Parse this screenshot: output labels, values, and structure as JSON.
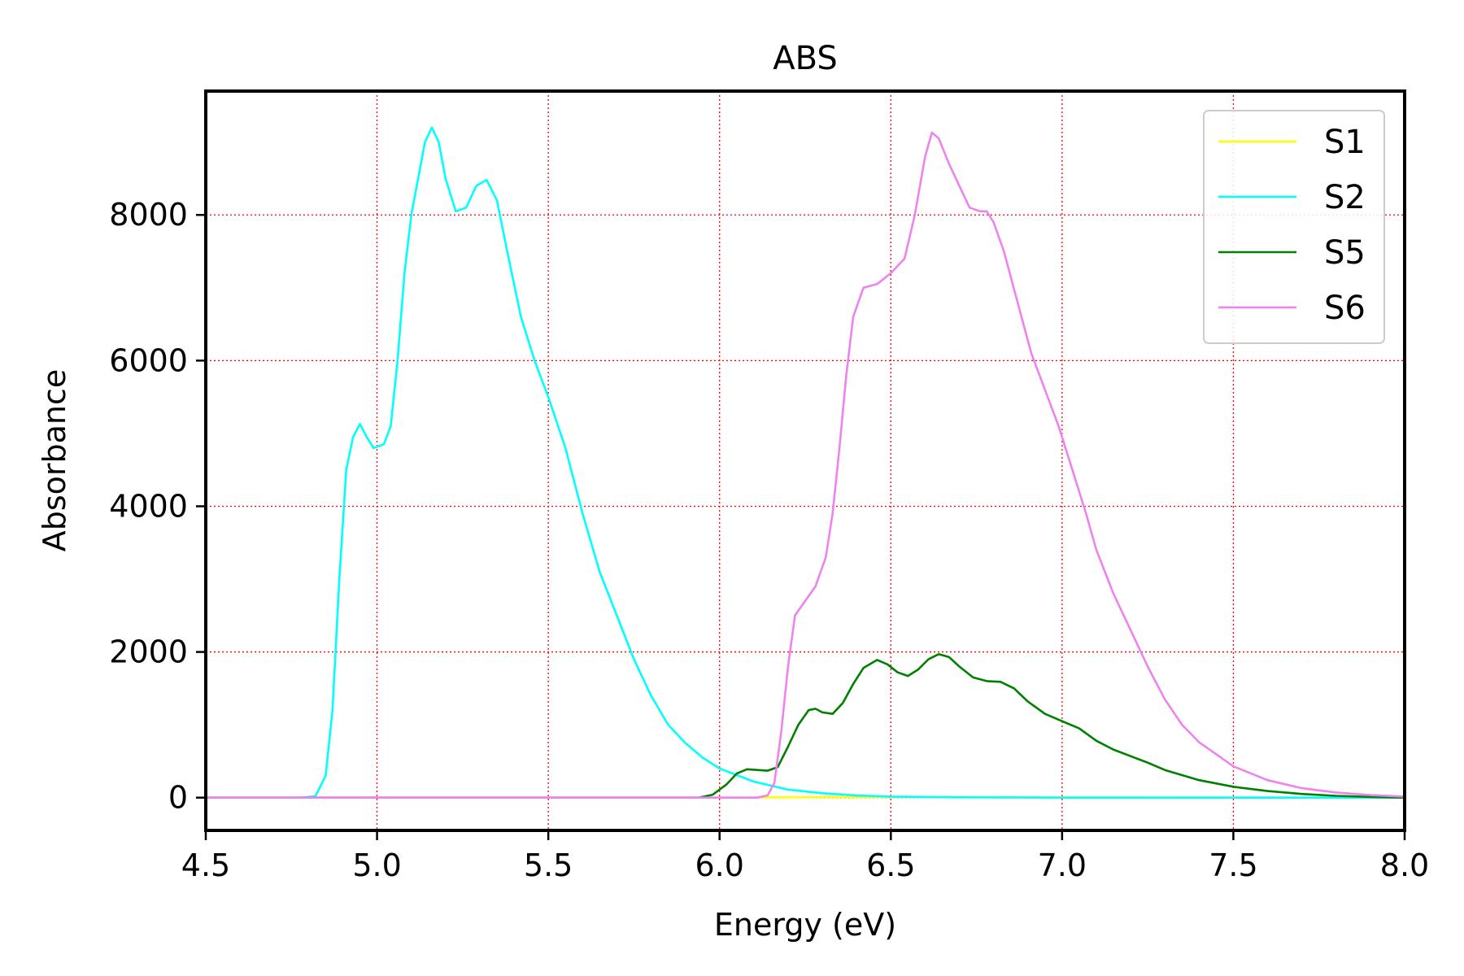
{
  "chart_data": {
    "type": "line",
    "title": "ABS",
    "xlabel": "Energy (eV)",
    "ylabel": "Absorbance",
    "xlim": [
      4.5,
      8.0
    ],
    "ylim": [
      -450,
      9700
    ],
    "xticks": [
      4.5,
      5.0,
      5.5,
      6.0,
      6.5,
      7.0,
      7.5,
      8.0
    ],
    "xtick_labels": [
      "4.5",
      "5.0",
      "5.5",
      "6.0",
      "6.5",
      "7.0",
      "7.5",
      "8.0"
    ],
    "yticks": [
      0,
      2000,
      4000,
      6000,
      8000
    ],
    "ytick_labels": [
      "0",
      "2000",
      "4000",
      "6000",
      "8000"
    ],
    "grid": true,
    "grid_color": "#ff0000",
    "legend_position": "upper right",
    "series": [
      {
        "name": "S1",
        "color": "#ffff00",
        "points": [
          [
            4.5,
            0
          ],
          [
            6.0,
            0
          ],
          [
            6.1,
            2
          ],
          [
            6.2,
            5
          ],
          [
            6.3,
            8
          ],
          [
            6.5,
            10
          ],
          [
            6.7,
            8
          ],
          [
            7.0,
            5
          ],
          [
            7.5,
            2
          ],
          [
            8.0,
            0
          ]
        ]
      },
      {
        "name": "S2",
        "color": "#00ffff",
        "points": [
          [
            4.5,
            0
          ],
          [
            4.78,
            0
          ],
          [
            4.82,
            20
          ],
          [
            4.85,
            300
          ],
          [
            4.87,
            1200
          ],
          [
            4.89,
            3000
          ],
          [
            4.91,
            4500
          ],
          [
            4.93,
            4950
          ],
          [
            4.95,
            5130
          ],
          [
            4.97,
            4950
          ],
          [
            4.99,
            4800
          ],
          [
            5.02,
            4850
          ],
          [
            5.04,
            5100
          ],
          [
            5.06,
            6000
          ],
          [
            5.08,
            7200
          ],
          [
            5.1,
            8000
          ],
          [
            5.12,
            8500
          ],
          [
            5.14,
            9000
          ],
          [
            5.16,
            9200
          ],
          [
            5.18,
            9000
          ],
          [
            5.2,
            8500
          ],
          [
            5.23,
            8050
          ],
          [
            5.26,
            8100
          ],
          [
            5.29,
            8400
          ],
          [
            5.32,
            8480
          ],
          [
            5.35,
            8200
          ],
          [
            5.38,
            7500
          ],
          [
            5.42,
            6600
          ],
          [
            5.46,
            6000
          ],
          [
            5.5,
            5500
          ],
          [
            5.55,
            4800
          ],
          [
            5.6,
            3900
          ],
          [
            5.65,
            3100
          ],
          [
            5.7,
            2500
          ],
          [
            5.75,
            1900
          ],
          [
            5.8,
            1400
          ],
          [
            5.85,
            1000
          ],
          [
            5.9,
            750
          ],
          [
            5.95,
            550
          ],
          [
            6.0,
            400
          ],
          [
            6.1,
            220
          ],
          [
            6.2,
            110
          ],
          [
            6.3,
            60
          ],
          [
            6.4,
            30
          ],
          [
            6.5,
            15
          ],
          [
            6.7,
            5
          ],
          [
            7.0,
            0
          ],
          [
            8.0,
            0
          ]
        ]
      },
      {
        "name": "S5",
        "color": "#008000",
        "points": [
          [
            4.5,
            0
          ],
          [
            5.94,
            0
          ],
          [
            5.98,
            40
          ],
          [
            6.02,
            180
          ],
          [
            6.05,
            330
          ],
          [
            6.08,
            390
          ],
          [
            6.11,
            380
          ],
          [
            6.14,
            370
          ],
          [
            6.17,
            420
          ],
          [
            6.2,
            700
          ],
          [
            6.23,
            1000
          ],
          [
            6.26,
            1200
          ],
          [
            6.28,
            1220
          ],
          [
            6.3,
            1170
          ],
          [
            6.33,
            1150
          ],
          [
            6.36,
            1300
          ],
          [
            6.39,
            1560
          ],
          [
            6.42,
            1780
          ],
          [
            6.46,
            1890
          ],
          [
            6.49,
            1830
          ],
          [
            6.52,
            1720
          ],
          [
            6.55,
            1670
          ],
          [
            6.58,
            1760
          ],
          [
            6.61,
            1900
          ],
          [
            6.64,
            1970
          ],
          [
            6.67,
            1930
          ],
          [
            6.7,
            1800
          ],
          [
            6.74,
            1650
          ],
          [
            6.78,
            1600
          ],
          [
            6.82,
            1590
          ],
          [
            6.86,
            1500
          ],
          [
            6.9,
            1320
          ],
          [
            6.95,
            1150
          ],
          [
            7.0,
            1050
          ],
          [
            7.05,
            950
          ],
          [
            7.1,
            780
          ],
          [
            7.15,
            660
          ],
          [
            7.2,
            570
          ],
          [
            7.25,
            480
          ],
          [
            7.3,
            380
          ],
          [
            7.4,
            240
          ],
          [
            7.5,
            150
          ],
          [
            7.6,
            90
          ],
          [
            7.7,
            50
          ],
          [
            7.8,
            25
          ],
          [
            7.9,
            10
          ],
          [
            8.0,
            0
          ]
        ]
      },
      {
        "name": "S6",
        "color": "#ee82ee",
        "points": [
          [
            4.5,
            0
          ],
          [
            6.11,
            0
          ],
          [
            6.14,
            30
          ],
          [
            6.16,
            200
          ],
          [
            6.18,
            900
          ],
          [
            6.2,
            1800
          ],
          [
            6.22,
            2500
          ],
          [
            6.25,
            2700
          ],
          [
            6.28,
            2900
          ],
          [
            6.31,
            3300
          ],
          [
            6.33,
            3900
          ],
          [
            6.35,
            4800
          ],
          [
            6.37,
            5800
          ],
          [
            6.39,
            6600
          ],
          [
            6.42,
            7000
          ],
          [
            6.46,
            7050
          ],
          [
            6.5,
            7200
          ],
          [
            6.54,
            7400
          ],
          [
            6.57,
            8000
          ],
          [
            6.6,
            8800
          ],
          [
            6.62,
            9130
          ],
          [
            6.64,
            9050
          ],
          [
            6.67,
            8700
          ],
          [
            6.7,
            8400
          ],
          [
            6.73,
            8100
          ],
          [
            6.76,
            8050
          ],
          [
            6.78,
            8050
          ],
          [
            6.8,
            7900
          ],
          [
            6.83,
            7500
          ],
          [
            6.87,
            6800
          ],
          [
            6.91,
            6100
          ],
          [
            6.95,
            5600
          ],
          [
            6.99,
            5100
          ],
          [
            7.03,
            4500
          ],
          [
            7.07,
            3900
          ],
          [
            7.1,
            3400
          ],
          [
            7.15,
            2800
          ],
          [
            7.2,
            2300
          ],
          [
            7.25,
            1800
          ],
          [
            7.3,
            1350
          ],
          [
            7.35,
            1000
          ],
          [
            7.4,
            760
          ],
          [
            7.5,
            430
          ],
          [
            7.6,
            240
          ],
          [
            7.7,
            130
          ],
          [
            7.8,
            70
          ],
          [
            7.9,
            35
          ],
          [
            8.0,
            15
          ]
        ]
      }
    ]
  }
}
